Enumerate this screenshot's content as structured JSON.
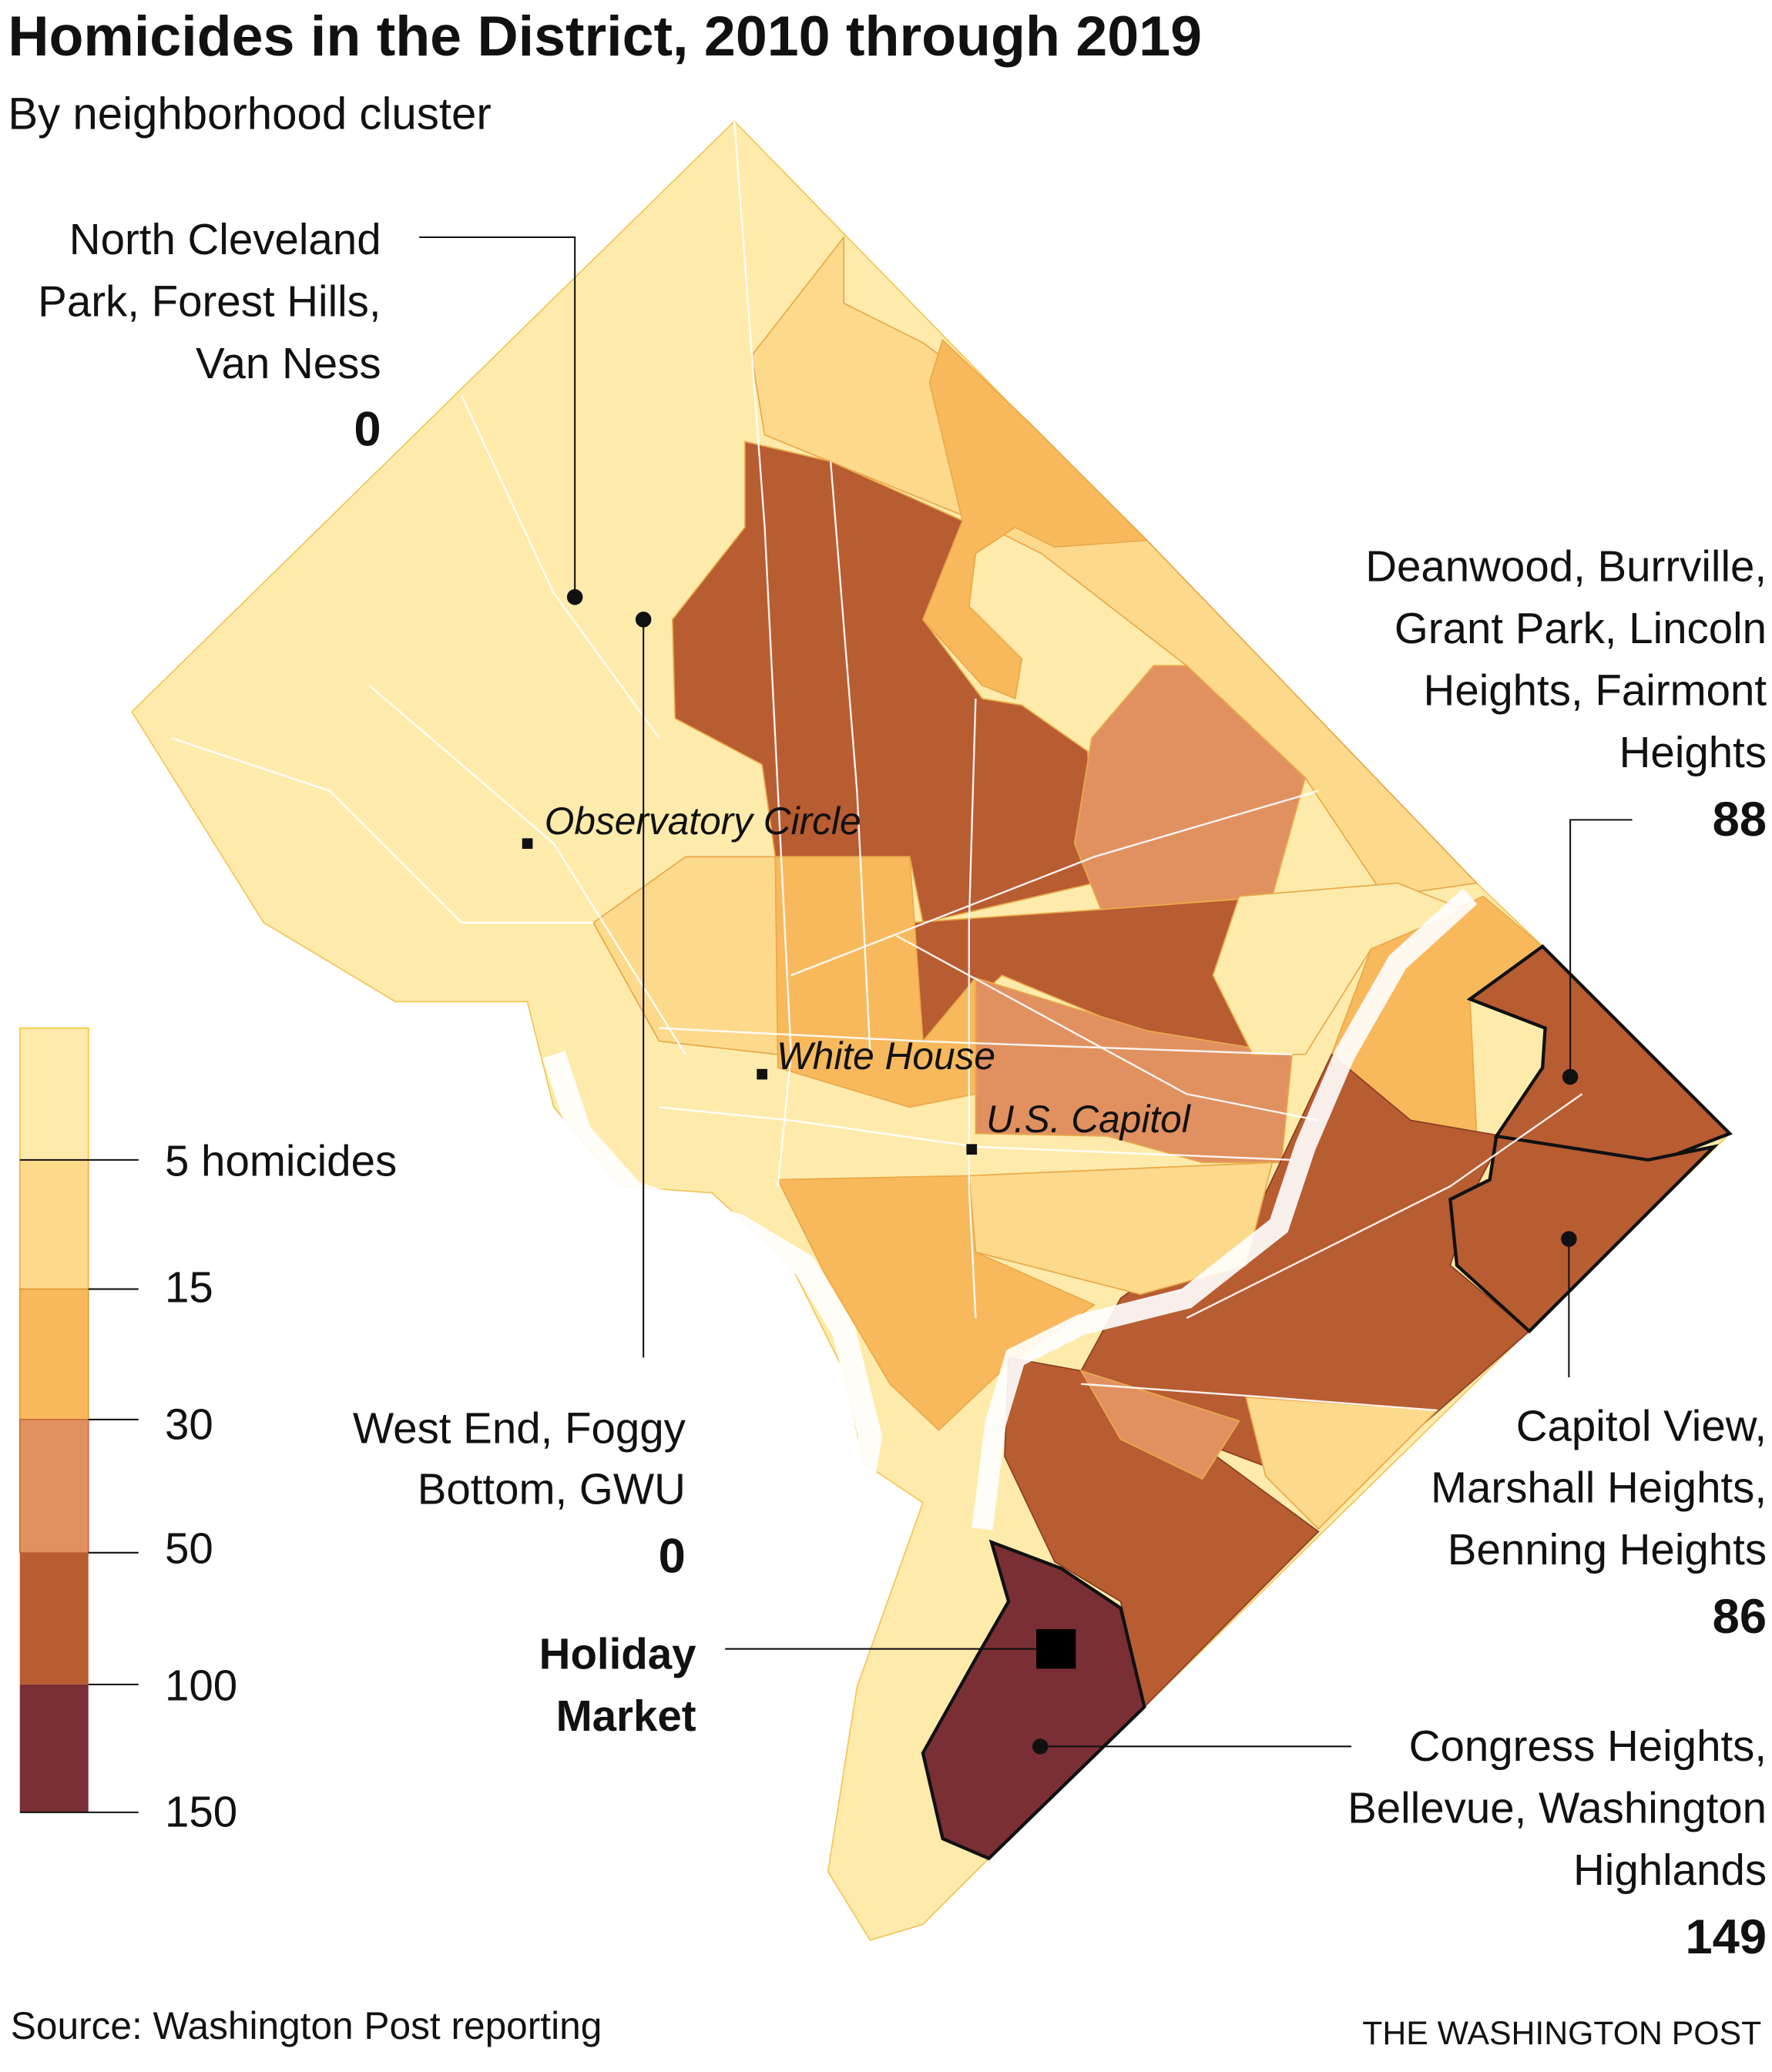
{
  "title": "Homicides in the District, 2010 through 2019",
  "subtitle": "By neighborhood cluster",
  "colors": {
    "bin_0_5": "#feebab",
    "bin_5_15": "#fdd98c",
    "bin_15_30": "#f8b95d",
    "bin_30_50": "#e19160",
    "bin_50_100": "#b85c32",
    "bin_100_150": "#7a2f35"
  },
  "legend": {
    "ticks": [
      "5 homicides",
      "15",
      "30",
      "50",
      "100",
      "150"
    ]
  },
  "landmarks": {
    "observatory": "Observatory Circle",
    "white_house": "White House",
    "capitol": "U.S. Capitol"
  },
  "callouts": {
    "north_cleveland": {
      "lines": [
        "North Cleveland",
        "Park, Forest Hills,",
        "Van Ness"
      ],
      "value": "0"
    },
    "deanwood": {
      "lines": [
        "Deanwood, Burrville,",
        "Grant Park, Lincoln",
        "Heights, Fairmont",
        "Heights"
      ],
      "value": "88"
    },
    "west_end": {
      "lines": [
        "West End, Foggy",
        "Bottom, GWU"
      ],
      "value": "0"
    },
    "holiday_market": {
      "lines": [
        "Holiday",
        "Market"
      ]
    },
    "capitol_view": {
      "lines": [
        "Capitol View,",
        "Marshall Heights,",
        "Benning Heights"
      ],
      "value": "86"
    },
    "congress_heights": {
      "lines": [
        "Congress Heights,",
        "Bellevue, Washington",
        "Highlands"
      ],
      "value": "149"
    }
  },
  "footer": {
    "source": "Source: Washington Post reporting",
    "credit": "THE WASHINGTON POST"
  }
}
